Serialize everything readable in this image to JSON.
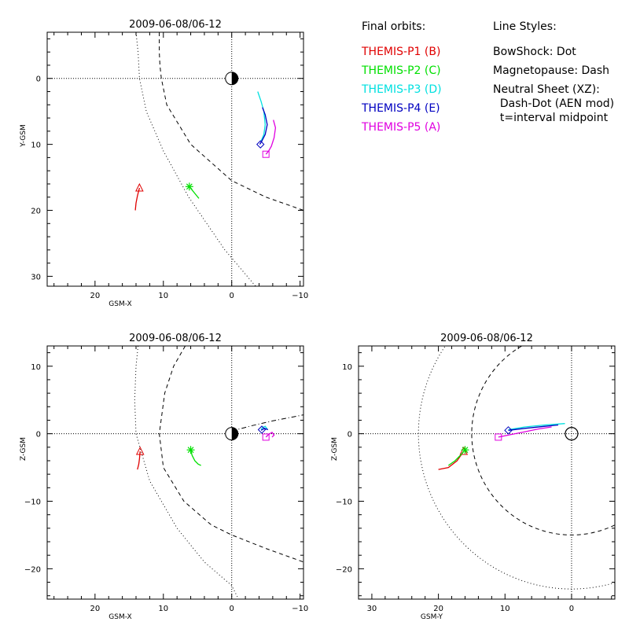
{
  "legend": {
    "orbits_title": "Final orbits:",
    "probes": [
      {
        "label": "THEMIS-P1 (B)",
        "color": "#e00000"
      },
      {
        "label": "THEMIS-P2 (C)",
        "color": "#00e000"
      },
      {
        "label": "THEMIS-P3 (D)",
        "color": "#00e0e0"
      },
      {
        "label": "THEMIS-P4 (E)",
        "color": "#0000c0"
      },
      {
        "label": "THEMIS-P5 (A)",
        "color": "#e000e0"
      }
    ],
    "styles_title": "Line Styles:",
    "styles": [
      "BowShock: Dot",
      "Magnetopause: Dash",
      "Neutral Sheet (XZ):",
      "  Dash-Dot (AEN mod)",
      "  t=interval midpoint"
    ]
  },
  "chart_data": [
    {
      "type": "scatter",
      "title": "2009-06-08/06-12",
      "xlabel": "GSM-X",
      "ylabel": "Y-GSM",
      "xlim": [
        27,
        -10.5
      ],
      "ylim": [
        -7,
        31.5
      ],
      "y_reversed": true,
      "xticks": [
        20,
        10,
        0,
        -10
      ],
      "yticks": [
        0,
        10,
        20,
        30
      ],
      "series": [
        {
          "name": "THEMIS-P1 (B)",
          "x": [
            14.1,
            14.0,
            13.8,
            13.5
          ],
          "y": [
            20.0,
            18.9,
            17.8,
            16.6
          ],
          "marker": "triangle",
          "marker_point": [
            13.5,
            16.6
          ]
        },
        {
          "name": "THEMIS-P2 (C)",
          "x": [
            4.8,
            5.5,
            6.2
          ],
          "y": [
            18.2,
            17.3,
            16.4
          ],
          "marker": "asterisk",
          "marker_point": [
            6.2,
            16.4
          ]
        },
        {
          "name": "THEMIS-P3 (D)",
          "x": [
            -3.8,
            -4.3,
            -4.7,
            -4.9,
            -4.7,
            -4.3
          ],
          "y": [
            2.0,
            3.5,
            5.0,
            7.0,
            8.5,
            9.5
          ],
          "marker": "none"
        },
        {
          "name": "THEMIS-P4 (E)",
          "x": [
            -4.5,
            -4.9,
            -5.2,
            -4.9,
            -4.4,
            -4.1
          ],
          "y": [
            4.4,
            5.5,
            7.0,
            8.5,
            9.5,
            10.0
          ],
          "marker": "diamond",
          "marker_point": [
            -4.2,
            10.0
          ]
        },
        {
          "name": "THEMIS-P5 (A)",
          "x": [
            -6.1,
            -6.4,
            -6.2,
            -5.8,
            -5.4,
            -5.0
          ],
          "y": [
            6.3,
            7.5,
            9.0,
            10.3,
            11.0,
            11.5
          ],
          "marker": "square",
          "marker_point": [
            -5.0,
            11.5
          ]
        }
      ],
      "boundaries": [
        {
          "name": "BowShock",
          "style": "dot",
          "x": [
            14.0,
            13.7,
            13.6,
            13.5,
            12.5,
            10.0,
            6.3,
            1.0,
            -3.5
          ],
          "y": [
            -7,
            -4,
            -2,
            0,
            5,
            11,
            18,
            26,
            31.5
          ]
        },
        {
          "name": "Magnetopause",
          "style": "dash",
          "x": [
            10.6,
            10.6,
            10.5,
            10.3,
            9.5,
            6.0,
            0.0,
            -5.0,
            -10.5
          ],
          "y": [
            -7,
            -4,
            -2,
            0,
            4,
            10,
            15.5,
            18,
            20.0
          ]
        }
      ]
    },
    {
      "type": "scatter",
      "title": "2009-06-08/06-12",
      "xlabel": "GSM-X",
      "ylabel": "Z-GSM",
      "xlim": [
        27,
        -10.5
      ],
      "ylim": [
        -24.5,
        13
      ],
      "xticks": [
        20,
        10,
        0,
        -10
      ],
      "yticks": [
        10,
        0,
        -10,
        -20
      ],
      "series": [
        {
          "name": "THEMIS-P1 (B)",
          "x": [
            13.8,
            13.6,
            13.5,
            13.4
          ],
          "y": [
            -5.3,
            -4.5,
            -3.7,
            -2.6
          ],
          "marker": "triangle",
          "marker_point": [
            13.4,
            -2.6
          ]
        },
        {
          "name": "THEMIS-P2 (C)",
          "x": [
            4.5,
            4.9,
            5.4,
            5.8,
            6.0
          ],
          "y": [
            -4.7,
            -4.5,
            -4.0,
            -3.2,
            -2.4
          ],
          "marker": "asterisk",
          "marker_point": [
            6.0,
            -2.4
          ]
        },
        {
          "name": "THEMIS-P3 (D)",
          "x": [
            -5.2,
            -4.9,
            -4.5,
            -4.3
          ],
          "y": [
            0.7,
            1.1,
            0.9,
            0.6
          ],
          "marker": "none"
        },
        {
          "name": "THEMIS-P4 (E)",
          "x": [
            -4.3,
            -4.8,
            -5.3
          ],
          "y": [
            0.5,
            0.8,
            0.6
          ],
          "marker": "diamond",
          "marker_point": [
            -4.4,
            0.6
          ]
        },
        {
          "name": "THEMIS-P5 (A)",
          "x": [
            -5.0,
            -5.4,
            -5.9,
            -6.2,
            -5.9
          ],
          "y": [
            -0.5,
            -0.1,
            0.2,
            -0.2,
            -0.5
          ],
          "marker": "square",
          "marker_point": [
            -5.0,
            -0.5
          ]
        }
      ],
      "boundaries": [
        {
          "name": "BowShock",
          "style": "dot",
          "x": [
            13.7,
            14.0,
            14.2,
            14.0,
            12.0,
            8.0,
            4.0,
            0.0,
            -1.0
          ],
          "y": [
            13,
            10,
            5,
            0,
            -7,
            -14,
            -19,
            -22.5,
            -24.5
          ]
        },
        {
          "name": "Magnetopause",
          "style": "dash",
          "x": [
            6.8,
            8.5,
            9.8,
            10.6,
            10.0,
            7.0,
            3.0,
            0.0,
            -5.0,
            -10.5
          ],
          "y": [
            13,
            10,
            6,
            0,
            -5,
            -10,
            -13.5,
            -15,
            -17.0,
            -19.0
          ]
        },
        {
          "name": "Neutral Sheet",
          "style": "dashdot",
          "x": [
            0.0,
            -3.0,
            -6.0,
            -9.0,
            -10.5
          ],
          "y": [
            0.4,
            1.2,
            1.9,
            2.5,
            2.8
          ]
        }
      ]
    },
    {
      "type": "scatter",
      "title": "2009-06-08/06-12",
      "xlabel": "GSM-Y",
      "ylabel": "Z-GSM",
      "xlim": [
        32,
        -6.5
      ],
      "ylim": [
        -24.5,
        13
      ],
      "xticks": [
        30,
        20,
        10,
        0
      ],
      "yticks": [
        10,
        0,
        -10,
        -20
      ],
      "series": [
        {
          "name": "THEMIS-P1 (B)",
          "x": [
            20.0,
            18.5,
            17.2,
            16.2
          ],
          "y": [
            -5.3,
            -5.0,
            -4.0,
            -2.6
          ],
          "marker": "triangle",
          "marker_point": [
            16.2,
            -2.6
          ]
        },
        {
          "name": "THEMIS-P2 (C)",
          "x": [
            18.5,
            17.5,
            16.6,
            16.0
          ],
          "y": [
            -4.7,
            -4.0,
            -3.1,
            -2.4
          ],
          "marker": "asterisk",
          "marker_point": [
            16.0,
            -2.4
          ]
        },
        {
          "name": "THEMIS-P3 (D)",
          "x": [
            9.5,
            7.0,
            4.0,
            1.0
          ],
          "y": [
            0.6,
            1.0,
            1.3,
            1.5
          ],
          "marker": "none"
        },
        {
          "name": "THEMIS-P4 (E)",
          "x": [
            9.5,
            7.0,
            4.0,
            2.0
          ],
          "y": [
            0.5,
            0.8,
            1.1,
            1.3
          ],
          "marker": "diamond",
          "marker_point": [
            9.5,
            0.5
          ]
        },
        {
          "name": "THEMIS-P5 (A)",
          "x": [
            11.0,
            9.0,
            7.0,
            5.0,
            3.0
          ],
          "y": [
            -0.5,
            -0.1,
            0.3,
            0.7,
            1.0
          ],
          "marker": "square",
          "marker_point": [
            11.0,
            -0.5
          ]
        }
      ],
      "boundaries": [
        {
          "name": "BowShock",
          "style": "dot",
          "circle": {
            "cx": 0,
            "cz": 0,
            "r": 23.0
          }
        },
        {
          "name": "Magnetopause",
          "style": "dash",
          "circle": {
            "cx": 0,
            "cz": 0,
            "r": 15.0
          }
        }
      ]
    }
  ]
}
